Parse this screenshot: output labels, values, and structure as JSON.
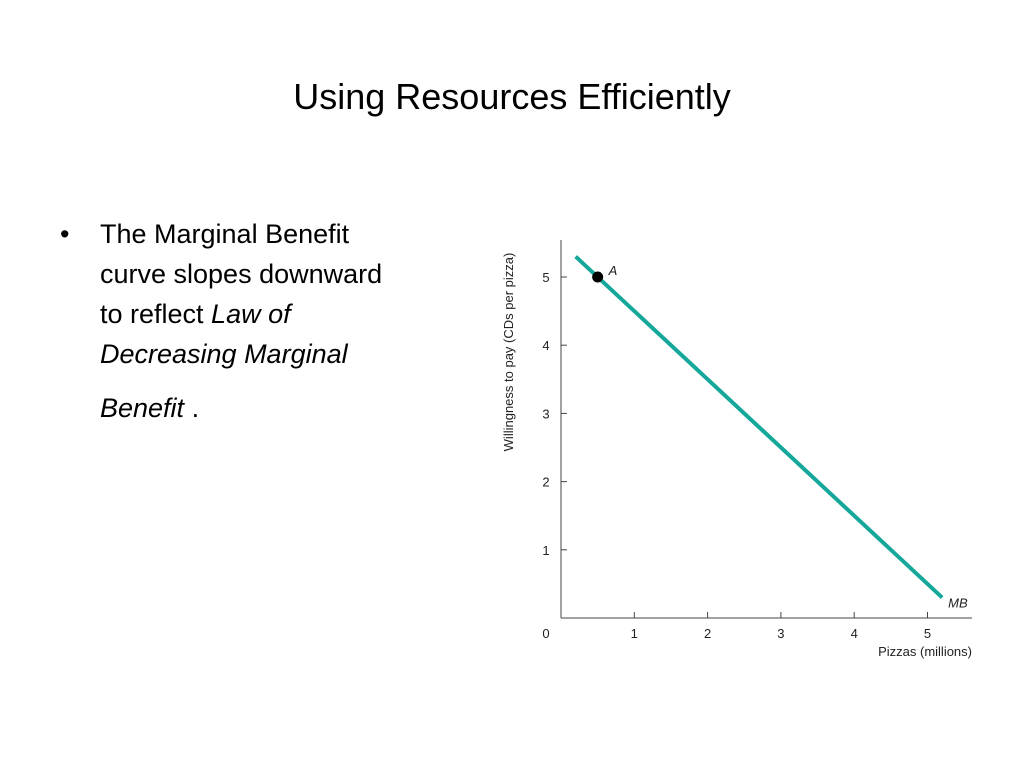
{
  "slide": {
    "title": "Using Resources Efficiently",
    "bullet": {
      "symbol": "•",
      "line1": "The Marginal Benefit",
      "line2": "curve slopes downward",
      "line3_prefix": "to reflect ",
      "line3_italic": "Law of",
      "line4_italic": "Decreasing Marginal",
      "line5_italic": "Benefit",
      "line5_suffix": " ."
    }
  },
  "chart_data": {
    "type": "line",
    "xlabel": "Pizzas (millions)",
    "ylabel": "Willingness to pay (CDs per pizza)",
    "xlim": [
      0,
      5.6
    ],
    "ylim": [
      0,
      5.5
    ],
    "x_ticks": [
      0,
      1,
      2,
      3,
      4,
      5
    ],
    "y_ticks": [
      1,
      2,
      3,
      4,
      5
    ],
    "grid": false,
    "series": [
      {
        "name": "MB",
        "color": "#15a89a",
        "points": [
          [
            0.2,
            5.3
          ],
          [
            5.2,
            0.3
          ]
        ]
      }
    ],
    "annotations": [
      {
        "label": "A",
        "x": 0.5,
        "y": 5.0,
        "marker": "dot"
      },
      {
        "label": "MB",
        "x": 5.2,
        "y": 0.3,
        "marker": "none"
      }
    ]
  }
}
